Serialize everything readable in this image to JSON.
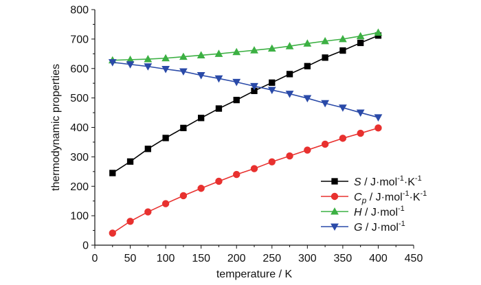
{
  "chart_data": {
    "type": "line",
    "title": "",
    "xlabel": "temperature / K",
    "ylabel": "thermodynamic properties",
    "xlim": [
      0,
      450
    ],
    "ylim": [
      0,
      800
    ],
    "x_ticks": [
      0,
      50,
      100,
      150,
      200,
      250,
      300,
      350,
      400,
      450
    ],
    "y_ticks": [
      0,
      100,
      200,
      300,
      400,
      500,
      600,
      700,
      800
    ],
    "grid": false,
    "legend_position": "bottom-right",
    "x": [
      25,
      50,
      75,
      100,
      125,
      150,
      175,
      200,
      225,
      250,
      275,
      300,
      325,
      350,
      375,
      400
    ],
    "series": [
      {
        "id": "S",
        "legend": {
          "symbol": "S",
          "sub": "",
          "units": " / J·mol",
          "sup1": "-1",
          "mid": "·K",
          "sup2": "-1"
        },
        "color": "#000000",
        "marker": "square",
        "values": [
          245,
          284,
          327,
          364,
          398,
          432,
          464,
          493,
          524,
          552,
          581,
          608,
          637,
          661,
          687,
          712
        ]
      },
      {
        "id": "Cp",
        "legend": {
          "symbol": "C",
          "sub": "p",
          "units": " / J·mol",
          "sup1": "-1",
          "mid": "·K",
          "sup2": "-1"
        },
        "color": "#e8312f",
        "marker": "circle",
        "values": [
          41,
          81,
          113,
          141,
          168,
          193,
          217,
          240,
          260,
          283,
          303,
          323,
          343,
          363,
          380,
          398
        ]
      },
      {
        "id": "H",
        "legend": {
          "symbol": "H",
          "sub": "",
          "units": " / J·mol",
          "sup1": "-1",
          "mid": "",
          "sup2": ""
        },
        "color": "#3cb043",
        "marker": "triangle-up",
        "values": [
          628,
          630,
          632,
          635,
          640,
          645,
          650,
          656,
          662,
          668,
          676,
          685,
          693,
          700,
          710,
          722
        ]
      },
      {
        "id": "G",
        "legend": {
          "symbol": "G",
          "sub": "",
          "units": " / J·mol",
          "sup1": "-1",
          "mid": "",
          "sup2": ""
        },
        "color": "#2a4aa8",
        "marker": "triangle-down",
        "values": [
          621,
          614,
          607,
          598,
          590,
          577,
          566,
          554,
          540,
          527,
          514,
          499,
          482,
          467,
          450,
          434
        ]
      }
    ]
  }
}
